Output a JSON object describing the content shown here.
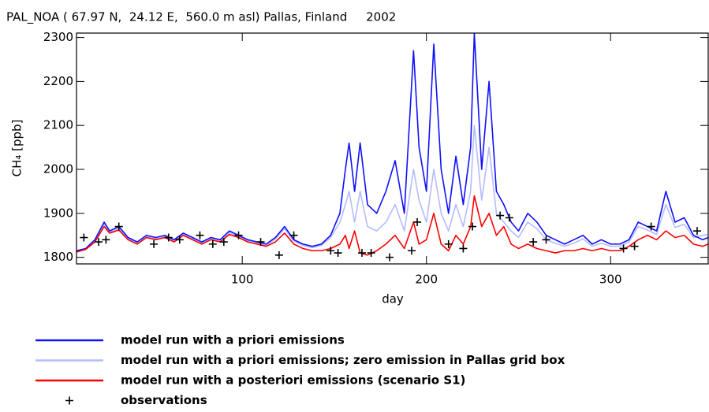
{
  "chart_data": {
    "type": "line",
    "title": "PAL_NOA ( 67.97 N,  24.12 E,  560.0 m asl) Pallas, Finland     2002",
    "xlabel": "day",
    "ylabel": "CH₄ [ppb]",
    "xlim": [
      10,
      353
    ],
    "ylim": [
      1785,
      2310
    ],
    "xticks": [
      100,
      200,
      300
    ],
    "yticks": [
      1800,
      1900,
      2000,
      2100,
      2200,
      2300
    ],
    "x": [
      10,
      15,
      20,
      25,
      28,
      33,
      38,
      43,
      48,
      53,
      58,
      63,
      68,
      73,
      78,
      83,
      88,
      93,
      98,
      103,
      108,
      113,
      118,
      123,
      128,
      133,
      138,
      143,
      148,
      153,
      156,
      158,
      161,
      164,
      168,
      173,
      178,
      183,
      188,
      193,
      196,
      200,
      204,
      208,
      212,
      216,
      220,
      224,
      226,
      230,
      234,
      238,
      242,
      246,
      250,
      255,
      260,
      265,
      270,
      275,
      280,
      285,
      290,
      295,
      300,
      305,
      310,
      315,
      320,
      325,
      330,
      335,
      340,
      345,
      350,
      353
    ],
    "series": [
      {
        "name": "model run with a priori emissions",
        "color": "#1010ff",
        "values": [
          1815,
          1820,
          1840,
          1880,
          1860,
          1870,
          1845,
          1835,
          1850,
          1845,
          1850,
          1840,
          1855,
          1845,
          1835,
          1845,
          1840,
          1860,
          1850,
          1840,
          1835,
          1830,
          1845,
          1870,
          1840,
          1830,
          1825,
          1830,
          1850,
          1900,
          2000,
          2060,
          1950,
          2060,
          1920,
          1900,
          1950,
          2020,
          1900,
          2270,
          2050,
          1950,
          2285,
          2000,
          1900,
          2030,
          1920,
          2050,
          2310,
          2000,
          2200,
          1950,
          1920,
          1880,
          1860,
          1900,
          1880,
          1850,
          1840,
          1830,
          1840,
          1850,
          1830,
          1840,
          1830,
          1830,
          1840,
          1880,
          1870,
          1860,
          1950,
          1880,
          1890,
          1850,
          1840,
          1845
        ]
      },
      {
        "name": "model run with a priori emissions; zero emission in Pallas grid box",
        "color": "#b4bcff",
        "values": [
          1813,
          1818,
          1838,
          1876,
          1857,
          1866,
          1842,
          1832,
          1847,
          1842,
          1847,
          1837,
          1852,
          1842,
          1832,
          1842,
          1837,
          1856,
          1847,
          1837,
          1832,
          1827,
          1842,
          1865,
          1837,
          1827,
          1822,
          1827,
          1845,
          1880,
          1920,
          1950,
          1880,
          1950,
          1870,
          1860,
          1880,
          1920,
          1860,
          2000,
          1930,
          1880,
          2000,
          1900,
          1860,
          1920,
          1870,
          1950,
          2100,
          1930,
          2050,
          1900,
          1880,
          1860,
          1845,
          1880,
          1865,
          1840,
          1832,
          1825,
          1832,
          1842,
          1825,
          1832,
          1825,
          1825,
          1835,
          1870,
          1862,
          1852,
          1920,
          1868,
          1875,
          1845,
          1850,
          1852
        ]
      },
      {
        "name": "model run with a posteriori emissions (scenario S1)",
        "color": "#ff0000",
        "values": [
          1812,
          1818,
          1835,
          1870,
          1855,
          1862,
          1840,
          1830,
          1845,
          1840,
          1845,
          1835,
          1850,
          1840,
          1830,
          1840,
          1835,
          1852,
          1845,
          1835,
          1830,
          1825,
          1835,
          1855,
          1830,
          1820,
          1815,
          1815,
          1820,
          1830,
          1850,
          1820,
          1860,
          1810,
          1805,
          1815,
          1830,
          1850,
          1820,
          1880,
          1830,
          1840,
          1900,
          1830,
          1815,
          1850,
          1830,
          1870,
          1940,
          1870,
          1900,
          1850,
          1870,
          1830,
          1820,
          1830,
          1820,
          1815,
          1810,
          1815,
          1815,
          1820,
          1815,
          1820,
          1815,
          1815,
          1825,
          1840,
          1850,
          1840,
          1860,
          1845,
          1850,
          1830,
          1825,
          1830
        ]
      },
      {
        "name": "observations",
        "type": "scatter",
        "color": "#000000",
        "x": [
          14,
          22,
          26,
          33,
          52,
          60,
          66,
          77,
          84,
          90,
          98,
          110,
          120,
          128,
          148,
          152,
          165,
          170,
          180,
          192,
          195,
          212,
          220,
          225,
          240,
          245,
          258,
          265,
          307,
          313,
          322,
          347
        ],
        "values": [
          1845,
          1835,
          1840,
          1870,
          1830,
          1845,
          1840,
          1850,
          1830,
          1835,
          1850,
          1835,
          1805,
          1850,
          1815,
          1810,
          1810,
          1810,
          1800,
          1815,
          1880,
          1830,
          1820,
          1870,
          1895,
          1890,
          1835,
          1840,
          1820,
          1825,
          1870,
          1860
        ]
      }
    ]
  }
}
